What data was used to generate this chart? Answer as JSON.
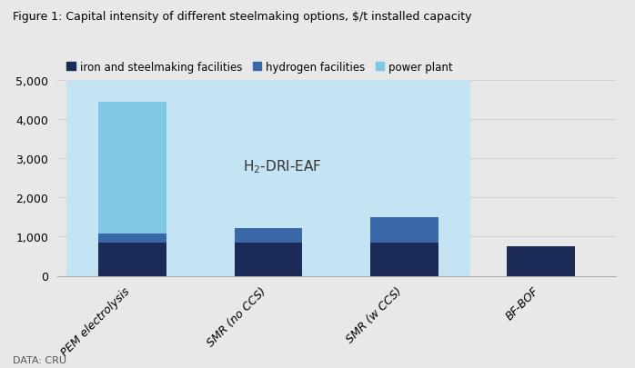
{
  "title": "Figure 1: Capital intensity of different steelmaking options, $/t installed capacity",
  "categories": [
    "PEM electrolysis",
    "SMR (no CCS)",
    "SMR (w CCS)",
    "BF-BOF"
  ],
  "iron_steel": [
    850,
    850,
    850,
    750
  ],
  "hydrogen": [
    220,
    370,
    650,
    0
  ],
  "power_plant": [
    3380,
    0,
    0,
    0
  ],
  "ylim": [
    0,
    5000
  ],
  "yticks": [
    0,
    1000,
    2000,
    3000,
    4000,
    5000
  ],
  "color_iron": "#1b2a57",
  "color_hydrogen": "#3a67a8",
  "color_power": "#7ec8e3",
  "color_background": "#c5e4f3",
  "color_fig_bg": "#e8e8e8",
  "annotation_label": "H$_2$-DRI-EAF",
  "legend_labels": [
    "iron and steelmaking facilities",
    "hydrogen facilities",
    "power plant"
  ],
  "source": "DATA: CRU",
  "bar_width": 0.5
}
